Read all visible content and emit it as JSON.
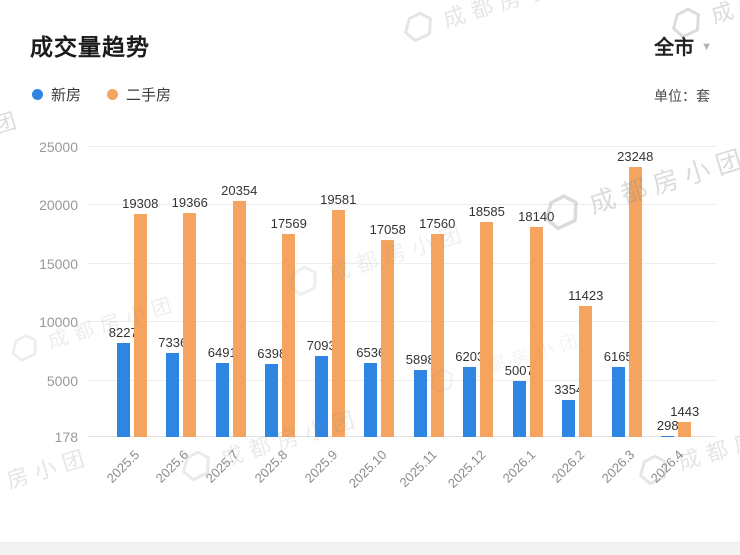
{
  "header": {
    "title": "成交量趋势",
    "region_selector": {
      "label": "全市",
      "caret": "▼"
    },
    "unit_label": "单位：套"
  },
  "legend": {
    "items": [
      {
        "key": "new-house",
        "label": "新房",
        "color": "#2F86E2"
      },
      {
        "key": "resale-house",
        "label": "二手房",
        "color": "#F4A45F"
      }
    ]
  },
  "watermark": {
    "text": "成都房小团"
  },
  "chart_data": {
    "type": "bar",
    "title": "成交量趋势",
    "unit": "套",
    "categories": [
      "2025.5",
      "2025.6",
      "2025.7",
      "2025.8",
      "2025.9",
      "2025.10",
      "2025.11",
      "2025.12",
      "2026.1",
      "2026.2",
      "2026.3",
      "2026.4"
    ],
    "series": [
      {
        "key": "new-house",
        "name": "新房",
        "color": "#2F86E2",
        "values": [
          8227,
          7336,
          6491,
          6398,
          7093,
          6536,
          5898,
          6203,
          5007,
          3354,
          6165,
          298
        ]
      },
      {
        "key": "resale-house",
        "name": "二手房",
        "color": "#F4A45F",
        "values": [
          19308,
          19366,
          20354,
          17569,
          19581,
          17058,
          17560,
          18585,
          18140,
          11423,
          23248,
          1443
        ]
      }
    ],
    "yticks": [
      178,
      5000,
      10000,
      15000,
      20000,
      25000
    ],
    "ymin": 178,
    "ymax": 25000,
    "grid": true,
    "legend_position": "top-left",
    "bar_label_color": "#333333",
    "axis_label_color": "#999999"
  }
}
